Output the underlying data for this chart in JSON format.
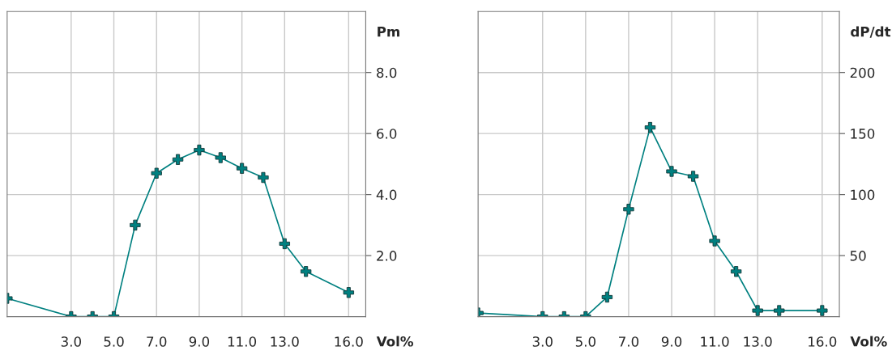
{
  "chart_data": [
    {
      "type": "line",
      "xlabel": "Vol%",
      "ylabel": "Pm",
      "x": [
        0,
        3,
        4,
        5,
        6,
        7,
        8,
        9,
        10,
        11,
        12,
        13,
        14,
        16
      ],
      "series": [
        {
          "color": "#008080",
          "values": [
            0.6,
            0,
            0,
            0,
            3.0,
            4.7,
            5.15,
            5.46,
            5.21,
            4.86,
            4.56,
            2.39,
            1.48,
            0.79
          ]
        }
      ],
      "xlim": [
        0,
        16.8
      ],
      "xticks": [
        {
          "value": 3,
          "label": "3.0"
        },
        {
          "value": 5,
          "label": "5.0"
        },
        {
          "value": 7,
          "label": "7.0"
        },
        {
          "value": 9,
          "label": "9.0"
        },
        {
          "value": 11,
          "label": "11.0"
        },
        {
          "value": 13,
          "label": "13.0"
        },
        {
          "value": 16,
          "label": "16.0"
        }
      ],
      "ylim": [
        0,
        10
      ],
      "yticks": [
        {
          "value": 2,
          "label": "2.0"
        },
        {
          "value": 4,
          "label": "4.0"
        },
        {
          "value": 6,
          "label": "6.0"
        },
        {
          "value": 8,
          "label": "8.0"
        }
      ],
      "grid": true,
      "marker": "cross",
      "line_style": "solid"
    },
    {
      "type": "line",
      "xlabel": "Vol%",
      "ylabel": "dP/dt",
      "x": [
        0,
        3,
        4,
        5,
        6,
        7,
        8,
        9,
        10,
        11,
        12,
        13,
        14,
        16
      ],
      "series": [
        {
          "color": "#008080",
          "values": [
            3,
            0,
            0,
            0,
            16,
            88,
            155,
            119,
            115,
            62,
            37,
            5,
            5,
            5
          ]
        }
      ],
      "xlim": [
        0,
        16.8
      ],
      "xticks": [
        {
          "value": 3,
          "label": "3.0"
        },
        {
          "value": 5,
          "label": "5.0"
        },
        {
          "value": 7,
          "label": "7.0"
        },
        {
          "value": 9,
          "label": "9.0"
        },
        {
          "value": 11,
          "label": "11.0"
        },
        {
          "value": 13,
          "label": "13.0"
        },
        {
          "value": 16,
          "label": "16.0"
        }
      ],
      "ylim": [
        0,
        250
      ],
      "yticks": [
        50,
        100,
        150,
        200
      ],
      "grid": true,
      "marker": "cross",
      "line_style": "solid"
    }
  ]
}
